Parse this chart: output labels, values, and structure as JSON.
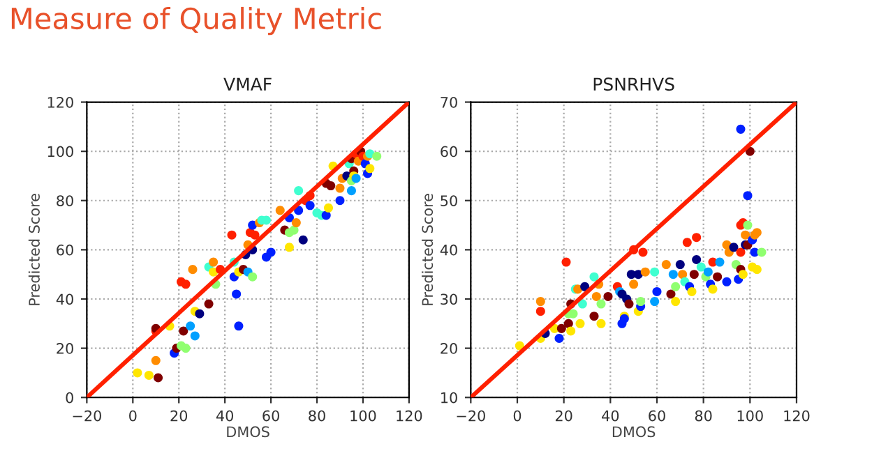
{
  "chart_data": [
    {
      "type": "scatter",
      "title": "VMAF",
      "xlabel": "DMOS",
      "ylabel": "Predicted Score",
      "annotations": [
        "Measure of Quality Metric"
      ],
      "xlim": [
        -20,
        120
      ],
      "ylim": [
        0,
        120
      ],
      "xticks": [
        {
          "value": -20,
          "label": "−20"
        },
        0,
        20,
        40,
        60,
        80,
        100,
        120
      ],
      "yticks": [
        0,
        20,
        40,
        60,
        80,
        100,
        120
      ],
      "grid": true,
      "series": [
        {
          "marker": "circle",
          "x": [
            2,
            7,
            11,
            10,
            10,
            10,
            16,
            18,
            19,
            21,
            22,
            23,
            21,
            23,
            25,
            26,
            27,
            27,
            29,
            33,
            33,
            35,
            35,
            36,
            38,
            43,
            44,
            44,
            45,
            46,
            46,
            48,
            49,
            50,
            50,
            51,
            52,
            52,
            52,
            53,
            55,
            56,
            58,
            58,
            60,
            64,
            66,
            68,
            68,
            68,
            70,
            71,
            72,
            72,
            74,
            75,
            77,
            77,
            80,
            82,
            84,
            85,
            84,
            86,
            87,
            90,
            90,
            91,
            93,
            94,
            95,
            95,
            95,
            96,
            96,
            97,
            97,
            98,
            99,
            100,
            101,
            102,
            102,
            103,
            103,
            106
          ],
          "values": [
            10,
            9,
            8,
            15,
            27,
            28,
            29,
            18,
            20,
            21,
            27,
            20,
            47,
            46,
            29,
            52,
            35,
            25,
            34,
            38,
            53,
            55,
            51,
            46,
            52,
            66,
            55,
            49,
            42,
            29,
            51,
            52,
            58,
            62,
            51,
            67,
            60,
            70,
            49,
            66,
            71,
            72,
            72,
            57,
            59,
            76,
            68,
            67,
            61,
            73,
            68,
            71,
            76,
            84,
            64,
            80,
            78,
            82,
            75,
            74,
            74,
            77,
            87,
            86,
            94,
            80,
            85,
            89,
            90,
            95,
            88,
            84,
            97,
            92,
            90,
            89,
            99,
            96,
            100,
            98,
            95,
            91,
            98,
            93,
            99,
            98
          ],
          "colors": [
            "#ffe600",
            "#ffe600",
            "#800000",
            "#ff8c00",
            "#ff2000",
            "#800000",
            "#ffe600",
            "#0020ff",
            "#800000",
            "#90ff70",
            "#800000",
            "#90ff70",
            "#ff2000",
            "#ff2000",
            "#00a0ff",
            "#ff8c00",
            "#ffe600",
            "#00a0ff",
            "#00007f",
            "#800000",
            "#40ffd0",
            "#ff8c00",
            "#ffe600",
            "#90ff70",
            "#ff2000",
            "#ff2000",
            "#40ffd0",
            "#0020ff",
            "#0020ff",
            "#0020ff",
            "#ffe600",
            "#800000",
            "#00007f",
            "#ff8c00",
            "#00a0ff",
            "#ff2000",
            "#00007f",
            "#0020ff",
            "#90ff70",
            "#ff2000",
            "#ff8c00",
            "#40ffd0",
            "#40ffd0",
            "#0020ff",
            "#0020ff",
            "#ff8c00",
            "#800000",
            "#90ff70",
            "#ffe600",
            "#0020ff",
            "#90ff70",
            "#ff8c00",
            "#0020ff",
            "#40ffd0",
            "#00007f",
            "#ff2000",
            "#0020ff",
            "#ff2000",
            "#40ffd0",
            "#40ffd0",
            "#0020ff",
            "#ffe600",
            "#800000",
            "#800000",
            "#ffe600",
            "#0020ff",
            "#ff8c00",
            "#ff8c00",
            "#00007f",
            "#40ffd0",
            "#90ff70",
            "#00a0ff",
            "#800000",
            "#800000",
            "#ffe600",
            "#00a0ff",
            "#ff2000",
            "#ff8c00",
            "#800000",
            "#ff2000",
            "#0020ff",
            "#0020ff",
            "#ff8c00",
            "#ffe600",
            "#40ffd0",
            "#90ff70"
          ]
        },
        {
          "type": "line",
          "x": [
            -20,
            120
          ],
          "values": [
            0,
            120
          ],
          "color": "#ff2000"
        }
      ]
    },
    {
      "type": "scatter",
      "title": "PSNRHVS",
      "xlabel": "DMOS",
      "ylabel": "Predicted Score",
      "xlim": [
        -20,
        120
      ],
      "ylim": [
        10,
        70
      ],
      "xticks": [
        {
          "value": -20,
          "label": "−20"
        },
        0,
        20,
        40,
        60,
        80,
        100,
        120
      ],
      "yticks": [
        10,
        20,
        30,
        40,
        50,
        60,
        70
      ],
      "grid": true,
      "series": [
        {
          "marker": "circle",
          "x": [
            1,
            10,
            10,
            10,
            12,
            16,
            18,
            19,
            21,
            22,
            22,
            23,
            23,
            24,
            25,
            26,
            27,
            28,
            29,
            33,
            33,
            34,
            35,
            36,
            36,
            39,
            43,
            44,
            45,
            45,
            46,
            46,
            47,
            48,
            49,
            50,
            50,
            52,
            52,
            53,
            53,
            54,
            55,
            59,
            59,
            60,
            64,
            66,
            67,
            68,
            68,
            70,
            71,
            72,
            73,
            74,
            75,
            76,
            77,
            77,
            79,
            81,
            82,
            83,
            84,
            84,
            86,
            87,
            90,
            90,
            91,
            93,
            94,
            95,
            96,
            96,
            96,
            96,
            97,
            97,
            98,
            98,
            99,
            99,
            99,
            100,
            101,
            101,
            102,
            102,
            103,
            103,
            105
          ],
          "values": [
            20.5,
            29.5,
            27.5,
            22,
            23,
            24,
            22,
            24,
            37.5,
            25,
            27,
            29,
            23.5,
            27,
            32,
            32,
            25,
            29,
            32.5,
            34.5,
            26.5,
            30.5,
            33,
            25,
            29,
            30.5,
            32.5,
            31.5,
            25,
            31,
            26.5,
            26,
            30,
            29,
            35,
            33,
            40,
            35,
            27.5,
            28.5,
            29.5,
            39.5,
            35.5,
            35.5,
            29.5,
            31.5,
            37,
            31,
            35,
            32.5,
            29.5,
            37,
            35,
            33.5,
            41.5,
            32.5,
            31.5,
            35,
            42.5,
            38,
            36.5,
            34.5,
            35.5,
            33,
            37.5,
            32,
            34.5,
            37.5,
            41,
            33.5,
            39.5,
            40.5,
            37,
            34,
            36,
            39.5,
            45,
            64.5,
            45.5,
            35,
            43,
            41,
            51,
            45,
            41,
            60,
            42,
            36.5,
            39.5,
            43,
            43.5,
            36,
            39.5
          ],
          "colors": [
            "#ffe600",
            "#ff8c00",
            "#ff2000",
            "#ffe600",
            "#00007f",
            "#ffe600",
            "#0020ff",
            "#800000",
            "#ff2000",
            "#800000",
            "#90ff70",
            "#800000",
            "#ffe600",
            "#90ff70",
            "#40ffd0",
            "#ff8c00",
            "#ffe600",
            "#40ffd0",
            "#00007f",
            "#40ffd0",
            "#800000",
            "#ff8c00",
            "#ff8c00",
            "#ffe600",
            "#90ff70",
            "#800000",
            "#ff2000",
            "#00a0ff",
            "#0020ff",
            "#00007f",
            "#ffe600",
            "#0020ff",
            "#00007f",
            "#800000",
            "#00007f",
            "#ff8c00",
            "#ff2000",
            "#00007f",
            "#ffe600",
            "#0020ff",
            "#90ff70",
            "#ff2000",
            "#ff8c00",
            "#40ffd0",
            "#00a0ff",
            "#0020ff",
            "#ff8c00",
            "#800000",
            "#00a0ff",
            "#90ff70",
            "#ffe600",
            "#00007f",
            "#ff8c00",
            "#40ffd0",
            "#ff2000",
            "#0020ff",
            "#ffe600",
            "#800000",
            "#ff2000",
            "#00007f",
            "#40ffd0",
            "#90ff70",
            "#00a0ff",
            "#0020ff",
            "#ff2000",
            "#ffe600",
            "#800000",
            "#00a0ff",
            "#ff8c00",
            "#0020ff",
            "#ff8c00",
            "#00007f",
            "#90ff70",
            "#0020ff",
            "#800000",
            "#ff2000",
            "#ff2000",
            "#0020ff",
            "#ff2000",
            "#ffe600",
            "#ff8c00",
            "#00007f",
            "#0020ff",
            "#90ff70",
            "#800000",
            "#800000",
            "#0020ff",
            "#ffe600",
            "#0020ff",
            "#ff8c00",
            "#ff8c00",
            "#ffe600",
            "#90ff70"
          ]
        },
        {
          "type": "line",
          "x": [
            -20,
            120
          ],
          "values": [
            10,
            70
          ],
          "color": "#ff2000"
        }
      ]
    }
  ]
}
